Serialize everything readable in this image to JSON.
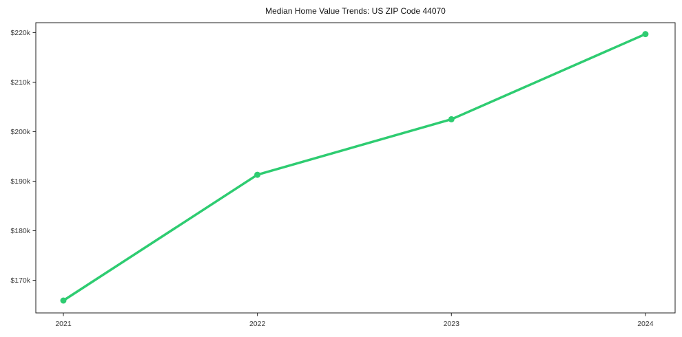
{
  "title": "Median Home Value Trends: US ZIP Code 44070",
  "colors": {
    "line": "#2ecc71",
    "marker": "#2ecc71",
    "axis": "#1f1f1f",
    "tick_label": "#3a3a3a",
    "title": "#111111",
    "background": "#ffffff"
  },
  "chart_data": {
    "type": "line",
    "title": "Median Home Value Trends: US ZIP Code 44070",
    "xlabel": "",
    "ylabel": "",
    "x": [
      2021,
      2022,
      2023,
      2024
    ],
    "values": [
      165900,
      191300,
      202500,
      219700
    ],
    "xticks": [
      2021,
      2022,
      2023,
      2024
    ],
    "xtick_labels": [
      "2021",
      "2022",
      "2023",
      "2024"
    ],
    "yticks": [
      170000,
      180000,
      190000,
      200000,
      210000,
      220000
    ],
    "ytick_labels": [
      "$170k",
      "$180k",
      "$190k",
      "$200k",
      "$210k",
      "$220k"
    ],
    "xlim": [
      2020.858,
      2024.153
    ],
    "ylim": [
      163400,
      222000
    ],
    "grid": false,
    "legend": false,
    "marker": "circle",
    "line_width": 3.5,
    "marker_radius": 4.5
  }
}
